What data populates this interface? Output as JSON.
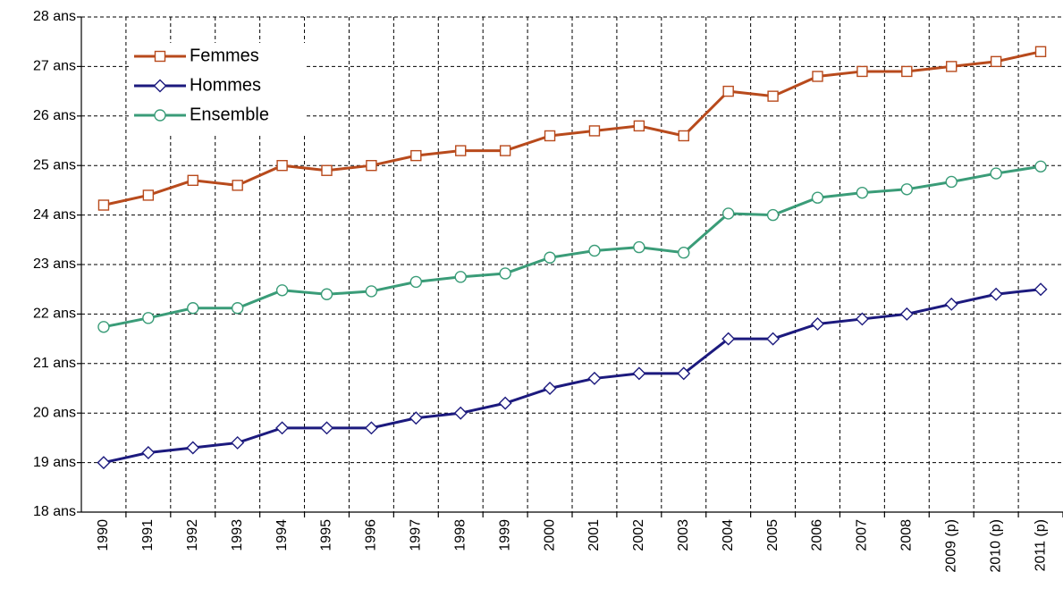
{
  "chart_data": {
    "type": "line",
    "categories": [
      "1990",
      "1991",
      "1992",
      "1993",
      "1994",
      "1995",
      "1996",
      "1997",
      "1998",
      "1999",
      "2000",
      "2001",
      "2002",
      "2003",
      "2004",
      "2005",
      "2006",
      "2007",
      "2008",
      "2009 (p)",
      "2010 (p)",
      "2011 (p)"
    ],
    "series": [
      {
        "name": "Femmes",
        "color": "#b84a1c",
        "marker": "square",
        "values": [
          24.2,
          24.4,
          24.7,
          24.6,
          25.0,
          24.9,
          25.0,
          25.2,
          25.3,
          25.3,
          25.6,
          25.7,
          25.8,
          25.6,
          26.5,
          26.4,
          26.8,
          26.9,
          26.9,
          27.0,
          27.1,
          27.3
        ]
      },
      {
        "name": "Hommes",
        "color": "#1c1a7e",
        "marker": "diamond",
        "values": [
          19.0,
          19.2,
          19.3,
          19.4,
          19.7,
          19.7,
          19.7,
          19.9,
          20.0,
          20.2,
          20.5,
          20.7,
          20.8,
          20.8,
          21.5,
          21.5,
          21.8,
          21.9,
          22.0,
          22.2,
          22.4,
          22.5
        ]
      },
      {
        "name": "Ensemble",
        "color": "#3a9c78",
        "marker": "circle",
        "values": [
          21.74,
          21.92,
          22.12,
          22.12,
          22.48,
          22.4,
          22.46,
          22.65,
          22.75,
          22.82,
          23.14,
          23.28,
          23.35,
          23.24,
          24.03,
          24.0,
          24.35,
          24.45,
          24.52,
          24.67,
          24.84,
          24.98
        ]
      }
    ],
    "ylim": [
      18,
      28
    ],
    "yticks": [
      {
        "value": 18,
        "label": "18 ans"
      },
      {
        "value": 19,
        "label": "19 ans"
      },
      {
        "value": 20,
        "label": "20 ans"
      },
      {
        "value": 21,
        "label": "21 ans"
      },
      {
        "value": 22,
        "label": "22 ans"
      },
      {
        "value": 23,
        "label": "23 ans"
      },
      {
        "value": 24,
        "label": "24 ans"
      },
      {
        "value": 25,
        "label": "25 ans"
      },
      {
        "value": 26,
        "label": "26 ans"
      },
      {
        "value": 27,
        "label": "27 ans"
      },
      {
        "value": 28,
        "label": "28 ans"
      }
    ],
    "grid": true,
    "legend": "upper left"
  }
}
